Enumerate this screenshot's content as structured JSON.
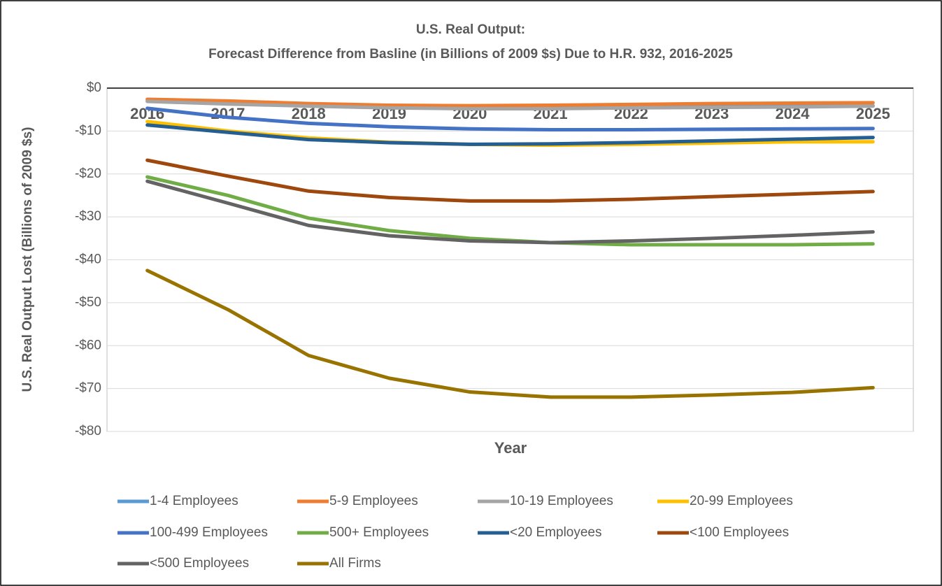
{
  "chart_data": {
    "type": "line",
    "title": [
      "U.S. Real Output:",
      "Forecast Difference from Basline (in Billions of 2009 $s) Due to H.R. 932, 2016-2025"
    ],
    "x_label": "Year",
    "y_label": "U.S. Real Output Lost (Billions of 2009 $s)",
    "categories": [
      "2016",
      "2017",
      "2018",
      "2019",
      "2020",
      "2021",
      "2022",
      "2023",
      "2024",
      "2025"
    ],
    "ylim": [
      -80,
      0
    ],
    "yticks": [
      {
        "value": 0,
        "label": "$0"
      },
      {
        "value": -10,
        "label": "-$10"
      },
      {
        "value": -20,
        "label": "-$20"
      },
      {
        "value": -30,
        "label": "-$30"
      },
      {
        "value": -40,
        "label": "-$40"
      },
      {
        "value": -50,
        "label": "-$50"
      },
      {
        "value": -60,
        "label": "-$60"
      },
      {
        "value": -70,
        "label": "-$70"
      },
      {
        "value": -80,
        "label": "-$80"
      }
    ],
    "grid": true,
    "legend": "bottom",
    "series": [
      {
        "name": "1-4 Employees",
        "color": "#5B9BD5",
        "values": [
          -3,
          -3.5,
          -4,
          -4.3,
          -4.5,
          -4.5,
          -4.4,
          -4.3,
          -4.2,
          -4.1
        ]
      },
      {
        "name": "5-9 Employees",
        "color": "#ED7D31",
        "values": [
          -2.6,
          -3,
          -3.6,
          -4,
          -4.1,
          -4,
          -3.8,
          -3.6,
          -3.5,
          -3.4
        ]
      },
      {
        "name": "10-19 Employees",
        "color": "#A5A5A5",
        "values": [
          -3.1,
          -3.7,
          -4.2,
          -4.6,
          -4.8,
          -4.8,
          -4.6,
          -4.5,
          -4.4,
          -4.2
        ]
      },
      {
        "name": "20-99 Employees",
        "color": "#FFC000",
        "values": [
          -7.8,
          -10,
          -11.6,
          -12.6,
          -13.1,
          -13.3,
          -13.1,
          -12.8,
          -12.5,
          -12.5
        ]
      },
      {
        "name": "100-499 Employees",
        "color": "#4472C4",
        "values": [
          -4.7,
          -6.8,
          -8.2,
          -9,
          -9.5,
          -9.7,
          -9.7,
          -9.6,
          -9.5,
          -9.4
        ]
      },
      {
        "name": "500+ Employees",
        "color": "#70AD47",
        "values": [
          -20.7,
          -25,
          -30.3,
          -33.2,
          -35,
          -36,
          -36.5,
          -36.5,
          -36.5,
          -36.3
        ]
      },
      {
        "name": "<20 Employees",
        "color": "#255E91",
        "values": [
          -8.6,
          -10.3,
          -12,
          -12.7,
          -13.1,
          -13,
          -12.7,
          -12.3,
          -11.9,
          -11.5
        ]
      },
      {
        "name": "<100 Employees",
        "color": "#9E480E",
        "values": [
          -16.8,
          -20.5,
          -24,
          -25.5,
          -26.3,
          -26.3,
          -25.9,
          -25.3,
          -24.7,
          -24.1
        ]
      },
      {
        "name": "<500 Employees",
        "color": "#636363",
        "values": [
          -21.7,
          -26.8,
          -32,
          -34.4,
          -35.6,
          -36,
          -35.6,
          -35,
          -34.3,
          -33.5
        ]
      },
      {
        "name": "All Firms",
        "color": "#997300",
        "values": [
          -42.5,
          -51.6,
          -62.3,
          -67.6,
          -70.8,
          -72,
          -72,
          -71.5,
          -70.9,
          -69.8
        ]
      }
    ]
  }
}
